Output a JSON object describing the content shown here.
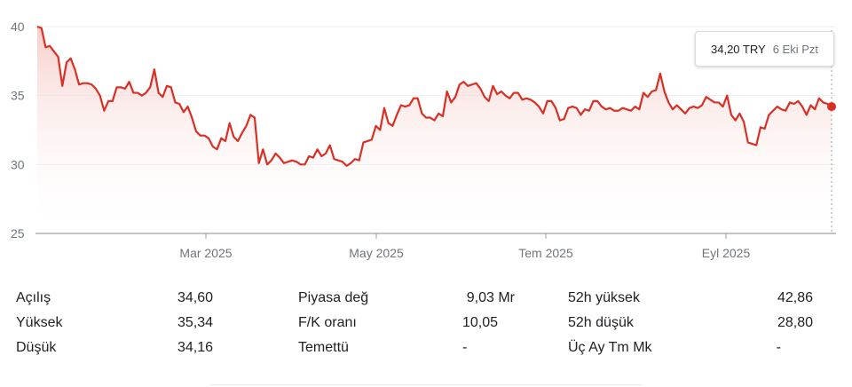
{
  "chart_data": {
    "type": "area",
    "y_axis": {
      "ticks": [
        40,
        35,
        30,
        25
      ],
      "ylim": [
        25,
        40
      ],
      "gridlines": true
    },
    "x_axis": {
      "ticks": [
        "Mar 2025",
        "May 2025",
        "Tem 2025",
        "Eyl 2025"
      ]
    },
    "colors": {
      "line": "#d93025",
      "fill_top": "#f6c9c4",
      "fill_bottom": "#ffffff"
    },
    "series": [
      {
        "values": [
          40.0,
          39.9,
          38.5,
          38.6,
          38.2,
          37.8,
          35.7,
          37.4,
          37.7,
          36.9,
          35.8,
          35.9,
          35.9,
          35.8,
          35.5,
          35.0,
          33.9,
          34.6,
          34.6,
          35.6,
          35.6,
          35.5,
          36.0,
          35.2,
          35.2,
          35.0,
          35.2,
          35.6,
          36.9,
          35.2,
          34.9,
          35.7,
          35.6,
          34.5,
          34.4,
          33.8,
          34.2,
          33.4,
          32.4,
          32.1,
          32.1,
          31.9,
          31.3,
          31.1,
          31.9,
          31.7,
          33.0,
          32.0,
          31.7,
          32.3,
          32.8,
          33.6,
          33.4,
          30.1,
          31.1,
          30.0,
          30.3,
          30.8,
          30.5,
          30.1,
          30.2,
          30.3,
          30.2,
          30.0,
          30.0,
          30.6,
          30.5,
          31.1,
          30.6,
          30.8,
          31.4,
          30.4,
          30.3,
          30.2,
          29.9,
          30.1,
          30.4,
          30.3,
          31.6,
          31.7,
          31.8,
          32.8,
          32.5,
          34.1,
          33.0,
          32.8,
          33.6,
          34.3,
          34.2,
          34.3,
          34.8,
          34.8,
          33.7,
          33.4,
          33.4,
          33.2,
          33.7,
          33.5,
          35.3,
          34.5,
          34.9,
          35.8,
          36.0,
          35.7,
          35.8,
          35.9,
          35.5,
          34.9,
          34.6,
          35.7,
          35.1,
          35.3,
          35.0,
          34.8,
          35.2,
          35.2,
          34.7,
          34.8,
          34.7,
          34.5,
          34.2,
          33.7,
          34.6,
          34.6,
          34.1,
          33.2,
          33.3,
          34.1,
          34.2,
          34.1,
          33.6,
          34.0,
          33.9,
          34.6,
          34.6,
          34.2,
          34.0,
          34.1,
          33.9,
          33.9,
          34.1,
          34.0,
          33.9,
          34.2,
          34.0,
          35.2,
          34.9,
          35.3,
          35.4,
          36.6,
          35.3,
          34.5,
          34.0,
          34.3,
          34.0,
          33.7,
          34.1,
          34.2,
          34.1,
          34.3,
          34.9,
          34.7,
          34.5,
          34.5,
          34.2,
          35.0,
          33.6,
          33.2,
          33.7,
          33.1,
          31.6,
          31.5,
          31.4,
          32.7,
          32.6,
          33.6,
          33.9,
          34.2,
          34.0,
          33.9,
          34.5,
          34.4,
          34.6,
          34.2,
          33.6,
          34.3,
          34.0,
          34.8,
          34.5,
          34.4,
          34.2
        ]
      }
    ],
    "last_point": {
      "price": "34,20 TRY",
      "date": "6 Eki Pzt"
    }
  },
  "tooltip": {
    "price": "34,20 TRY",
    "date": "6 Eki Pzt"
  },
  "stats": {
    "col1": [
      {
        "label": "Açılış",
        "value": "34,60"
      },
      {
        "label": "Yüksek",
        "value": "35,34"
      },
      {
        "label": "Düşük",
        "value": "34,16"
      }
    ],
    "col2": [
      {
        "label": "Piyasa değ",
        "value": "9,03 Mr"
      },
      {
        "label": "F/K oranı",
        "value": "10,05"
      },
      {
        "label": "Temettü",
        "value": "-"
      }
    ],
    "col3": [
      {
        "label": "52h yüksek",
        "value": "42,86"
      },
      {
        "label": "52h düşük",
        "value": "28,80"
      },
      {
        "label": "Üç Ay Tm Mk",
        "value": "-"
      }
    ]
  }
}
